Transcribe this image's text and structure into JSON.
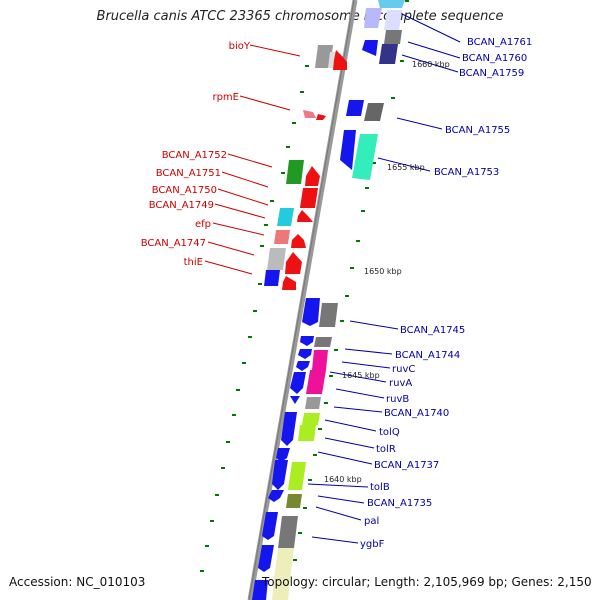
{
  "title": "Brucella canis ATCC 23365 chromosome I, complete sequence",
  "accession_text": "Accession: NC_010103",
  "topology_text": "Topology: circular; Length: 2,105,969 bp; Genes: 2,150",
  "colors": {
    "left_labels": "#cc0000",
    "right_labels": "#0000aa",
    "backbone": "#999999",
    "tick": "#007700"
  },
  "kbp_labels": [
    {
      "id": "1660",
      "text": "1660 kbp"
    },
    {
      "id": "1655",
      "text": "1655 kbp"
    },
    {
      "id": "1650",
      "text": "1650 kbp"
    },
    {
      "id": "1645",
      "text": "1645 kbp"
    },
    {
      "id": "1640",
      "text": "1640 kbp"
    }
  ],
  "left_labels": [
    {
      "id": "bioY",
      "text": "bioY"
    },
    {
      "id": "rpmE",
      "text": "rpmE"
    },
    {
      "id": "BCAN_A1752",
      "text": "BCAN_A1752"
    },
    {
      "id": "BCAN_A1751",
      "text": "BCAN_A1751"
    },
    {
      "id": "BCAN_A1750",
      "text": "BCAN_A1750"
    },
    {
      "id": "BCAN_A1749",
      "text": "BCAN_A1749"
    },
    {
      "id": "efp",
      "text": "efp"
    },
    {
      "id": "BCAN_A1747",
      "text": "BCAN_A1747"
    },
    {
      "id": "thiE",
      "text": "thiE"
    }
  ],
  "right_labels": [
    {
      "id": "BCAN_A1761",
      "text": "BCAN_A1761"
    },
    {
      "id": "BCAN_A1760",
      "text": "BCAN_A1760"
    },
    {
      "id": "BCAN_A1759",
      "text": "BCAN_A1759"
    },
    {
      "id": "BCAN_A1755",
      "text": "BCAN_A1755"
    },
    {
      "id": "BCAN_A1753",
      "text": "BCAN_A1753"
    },
    {
      "id": "BCAN_A1745",
      "text": "BCAN_A1745"
    },
    {
      "id": "BCAN_A1744",
      "text": "BCAN_A1744"
    },
    {
      "id": "ruvC",
      "text": "ruvC"
    },
    {
      "id": "ruvA",
      "text": "ruvA"
    },
    {
      "id": "ruvB",
      "text": "ruvB"
    },
    {
      "id": "BCAN_A1740",
      "text": "BCAN_A1740"
    },
    {
      "id": "tolQ",
      "text": "tolQ"
    },
    {
      "id": "tolR",
      "text": "tolR"
    },
    {
      "id": "BCAN_A1737",
      "text": "BCAN_A1737"
    },
    {
      "id": "tolB",
      "text": "tolB"
    },
    {
      "id": "BCAN_A1735",
      "text": "BCAN_A1735"
    },
    {
      "id": "pal",
      "text": "pal"
    },
    {
      "id": "ygbF",
      "text": "ygbF"
    }
  ]
}
